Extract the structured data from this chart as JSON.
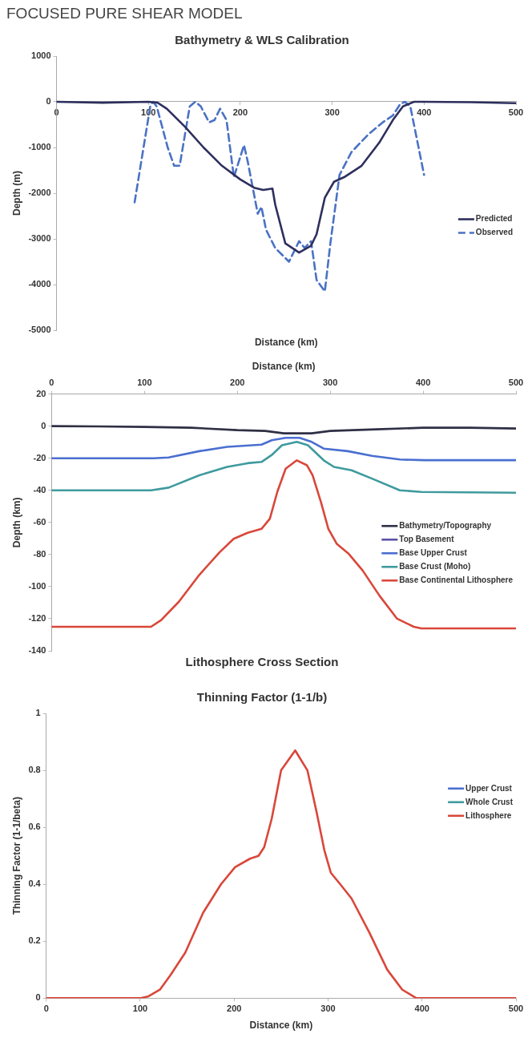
{
  "chart_data": [
    {
      "type": "line",
      "title": "Bathymetry & WLS Calibration",
      "annotations": [
        "FOCUSED PURE SHEAR MODEL"
      ],
      "xlabel": "Distance (km)",
      "ylabel": "Depth (m)",
      "xlim": [
        0,
        500
      ],
      "xticks": [
        0,
        100,
        200,
        300,
        400,
        500
      ],
      "ylim": [
        -5000,
        1000
      ],
      "yticks": [
        -5000,
        -4000,
        -3000,
        -2000,
        -1000,
        0,
        1000
      ],
      "grid": false,
      "legend": "right",
      "marker": "none",
      "series": [
        {
          "name": "Predicted",
          "color": "#2e2f5e",
          "line_style": "solid",
          "x": [
            0,
            50,
            100,
            110,
            120,
            140,
            160,
            180,
            200,
            215,
            225,
            235,
            238,
            249,
            264,
            277,
            283,
            292,
            302,
            313,
            332,
            351,
            366,
            377,
            389,
            400,
            450,
            500
          ],
          "values": [
            0,
            -20,
            0,
            -20,
            -150,
            -550,
            -1000,
            -1400,
            -1700,
            -1880,
            -1930,
            -1900,
            -2250,
            -3100,
            -3300,
            -3150,
            -2900,
            -2100,
            -1750,
            -1650,
            -1400,
            -900,
            -400,
            -100,
            0,
            0,
            -10,
            -30
          ]
        },
        {
          "name": "Observed",
          "color": "#4a72c4",
          "line_style": "dashed",
          "x": [
            85,
            102,
            105,
            109,
            121,
            128,
            134,
            145,
            151,
            157,
            166,
            172,
            178,
            185,
            193,
            204,
            208,
            219,
            223,
            228,
            238,
            253,
            264,
            270,
            277,
            283,
            292,
            298,
            308,
            321,
            340,
            355,
            366,
            374,
            379,
            385,
            400
          ],
          "values": [
            -2200,
            -100,
            0,
            -100,
            -1000,
            -1400,
            -1400,
            -100,
            0,
            -100,
            -450,
            -400,
            -150,
            -400,
            -1650,
            -950,
            -1300,
            -2450,
            -2300,
            -2800,
            -3200,
            -3500,
            -3050,
            -3200,
            -3050,
            -3900,
            -4150,
            -3100,
            -1600,
            -1100,
            -700,
            -450,
            -300,
            -50,
            0,
            -100,
            -1600
          ]
        }
      ]
    },
    {
      "type": "line",
      "title": "Lithosphere Cross Section",
      "xlabel": "Distance (km)",
      "ylabel": "Depth (km)",
      "xlim": [
        0,
        500
      ],
      "xticks": [
        0,
        100,
        200,
        300,
        400,
        500
      ],
      "ylim": [
        -140,
        20
      ],
      "yticks": [
        -140,
        -120,
        -100,
        -80,
        -60,
        -40,
        -20,
        0,
        20
      ],
      "grid": false,
      "legend": "right",
      "marker": "none",
      "series": [
        {
          "name": "Bathymetry/Topography",
          "color": "#2f2f45",
          "x": [
            0,
            50,
            100,
            150,
            200,
            230,
            250,
            265,
            280,
            300,
            350,
            400,
            450,
            500
          ],
          "values": [
            0,
            -0.2,
            -0.5,
            -1,
            -2.5,
            -3,
            -4.5,
            -4.5,
            -4.5,
            -3,
            -2,
            -1,
            -1,
            -1.5
          ]
        },
        {
          "name": "Top Basement",
          "color": "#5b4fa8"
        },
        {
          "name": "Base Upper Crust",
          "color": "#4a6fd0",
          "x": [
            0,
            110,
            126,
            159,
            189,
            226,
            237,
            252,
            267,
            280,
            293,
            319,
            345,
            375,
            401,
            500
          ],
          "values": [
            -20,
            -20,
            -19.5,
            -15.6,
            -12.9,
            -11.5,
            -8.8,
            -7.3,
            -7.3,
            -9.8,
            -14,
            -15.6,
            -18.5,
            -20.8,
            -21.2,
            -21.2
          ]
        },
        {
          "name": "Base Crust (Moho)",
          "color": "#3f9a9e",
          "x": [
            0,
            107,
            126,
            159,
            189,
            211,
            226,
            237,
            248,
            264,
            276,
            293,
            304,
            323,
            345,
            375,
            398,
            500
          ],
          "values": [
            -40,
            -40,
            -38.3,
            -30.6,
            -25.4,
            -23.1,
            -22.3,
            -18,
            -11.9,
            -9.8,
            -11.9,
            -21.3,
            -25.4,
            -27.5,
            -32.7,
            -40,
            -41,
            -41.5
          ]
        },
        {
          "name": "Base Continental Lithosphere",
          "color": "#d9473a",
          "x": [
            0,
            107,
            118,
            137,
            159,
            181,
            196,
            211,
            226,
            235,
            243,
            252,
            264,
            275,
            281,
            290,
            298,
            307,
            320,
            335,
            353,
            372,
            390,
            398,
            500
          ],
          "values": [
            -125,
            -125,
            -120.8,
            -109.4,
            -92.7,
            -78.5,
            -70.2,
            -66.5,
            -64,
            -57.7,
            -41,
            -26.5,
            -21.3,
            -24.4,
            -30.6,
            -47.3,
            -64,
            -73.3,
            -79.6,
            -90,
            -105.6,
            -120,
            -125,
            -126,
            -126
          ]
        }
      ]
    },
    {
      "type": "line",
      "title": "Thinning Factor (1-1/b)",
      "xlabel": "Distance (km)",
      "ylabel": "Thinning Factor (1-1/beta)",
      "xlim": [
        0,
        500
      ],
      "xticks": [
        0,
        100,
        200,
        300,
        400,
        500
      ],
      "ylim": [
        0,
        1
      ],
      "yticks": [
        0,
        0.2,
        0.4,
        0.6,
        0.8,
        1
      ],
      "grid": false,
      "legend": "top right",
      "marker": "none",
      "series": [
        {
          "name": "Upper Crust",
          "color": "#4a6fd0"
        },
        {
          "name": "Whole Crust",
          "color": "#3f9a9e"
        },
        {
          "name": "Lithosphere",
          "color": "#d9473a",
          "x": [
            0,
            100,
            109,
            121,
            132,
            148,
            167,
            186,
            201,
            217,
            226,
            232,
            240,
            250,
            265,
            278,
            288,
            296,
            303,
            313,
            325,
            344,
            363,
            379,
            394,
            500
          ],
          "values": [
            0,
            0,
            0.007,
            0.03,
            0.08,
            0.16,
            0.3,
            0.4,
            0.46,
            0.49,
            0.5,
            0.53,
            0.63,
            0.8,
            0.87,
            0.8,
            0.65,
            0.52,
            0.44,
            0.4,
            0.35,
            0.23,
            0.1,
            0.03,
            0,
            0
          ]
        }
      ]
    }
  ]
}
